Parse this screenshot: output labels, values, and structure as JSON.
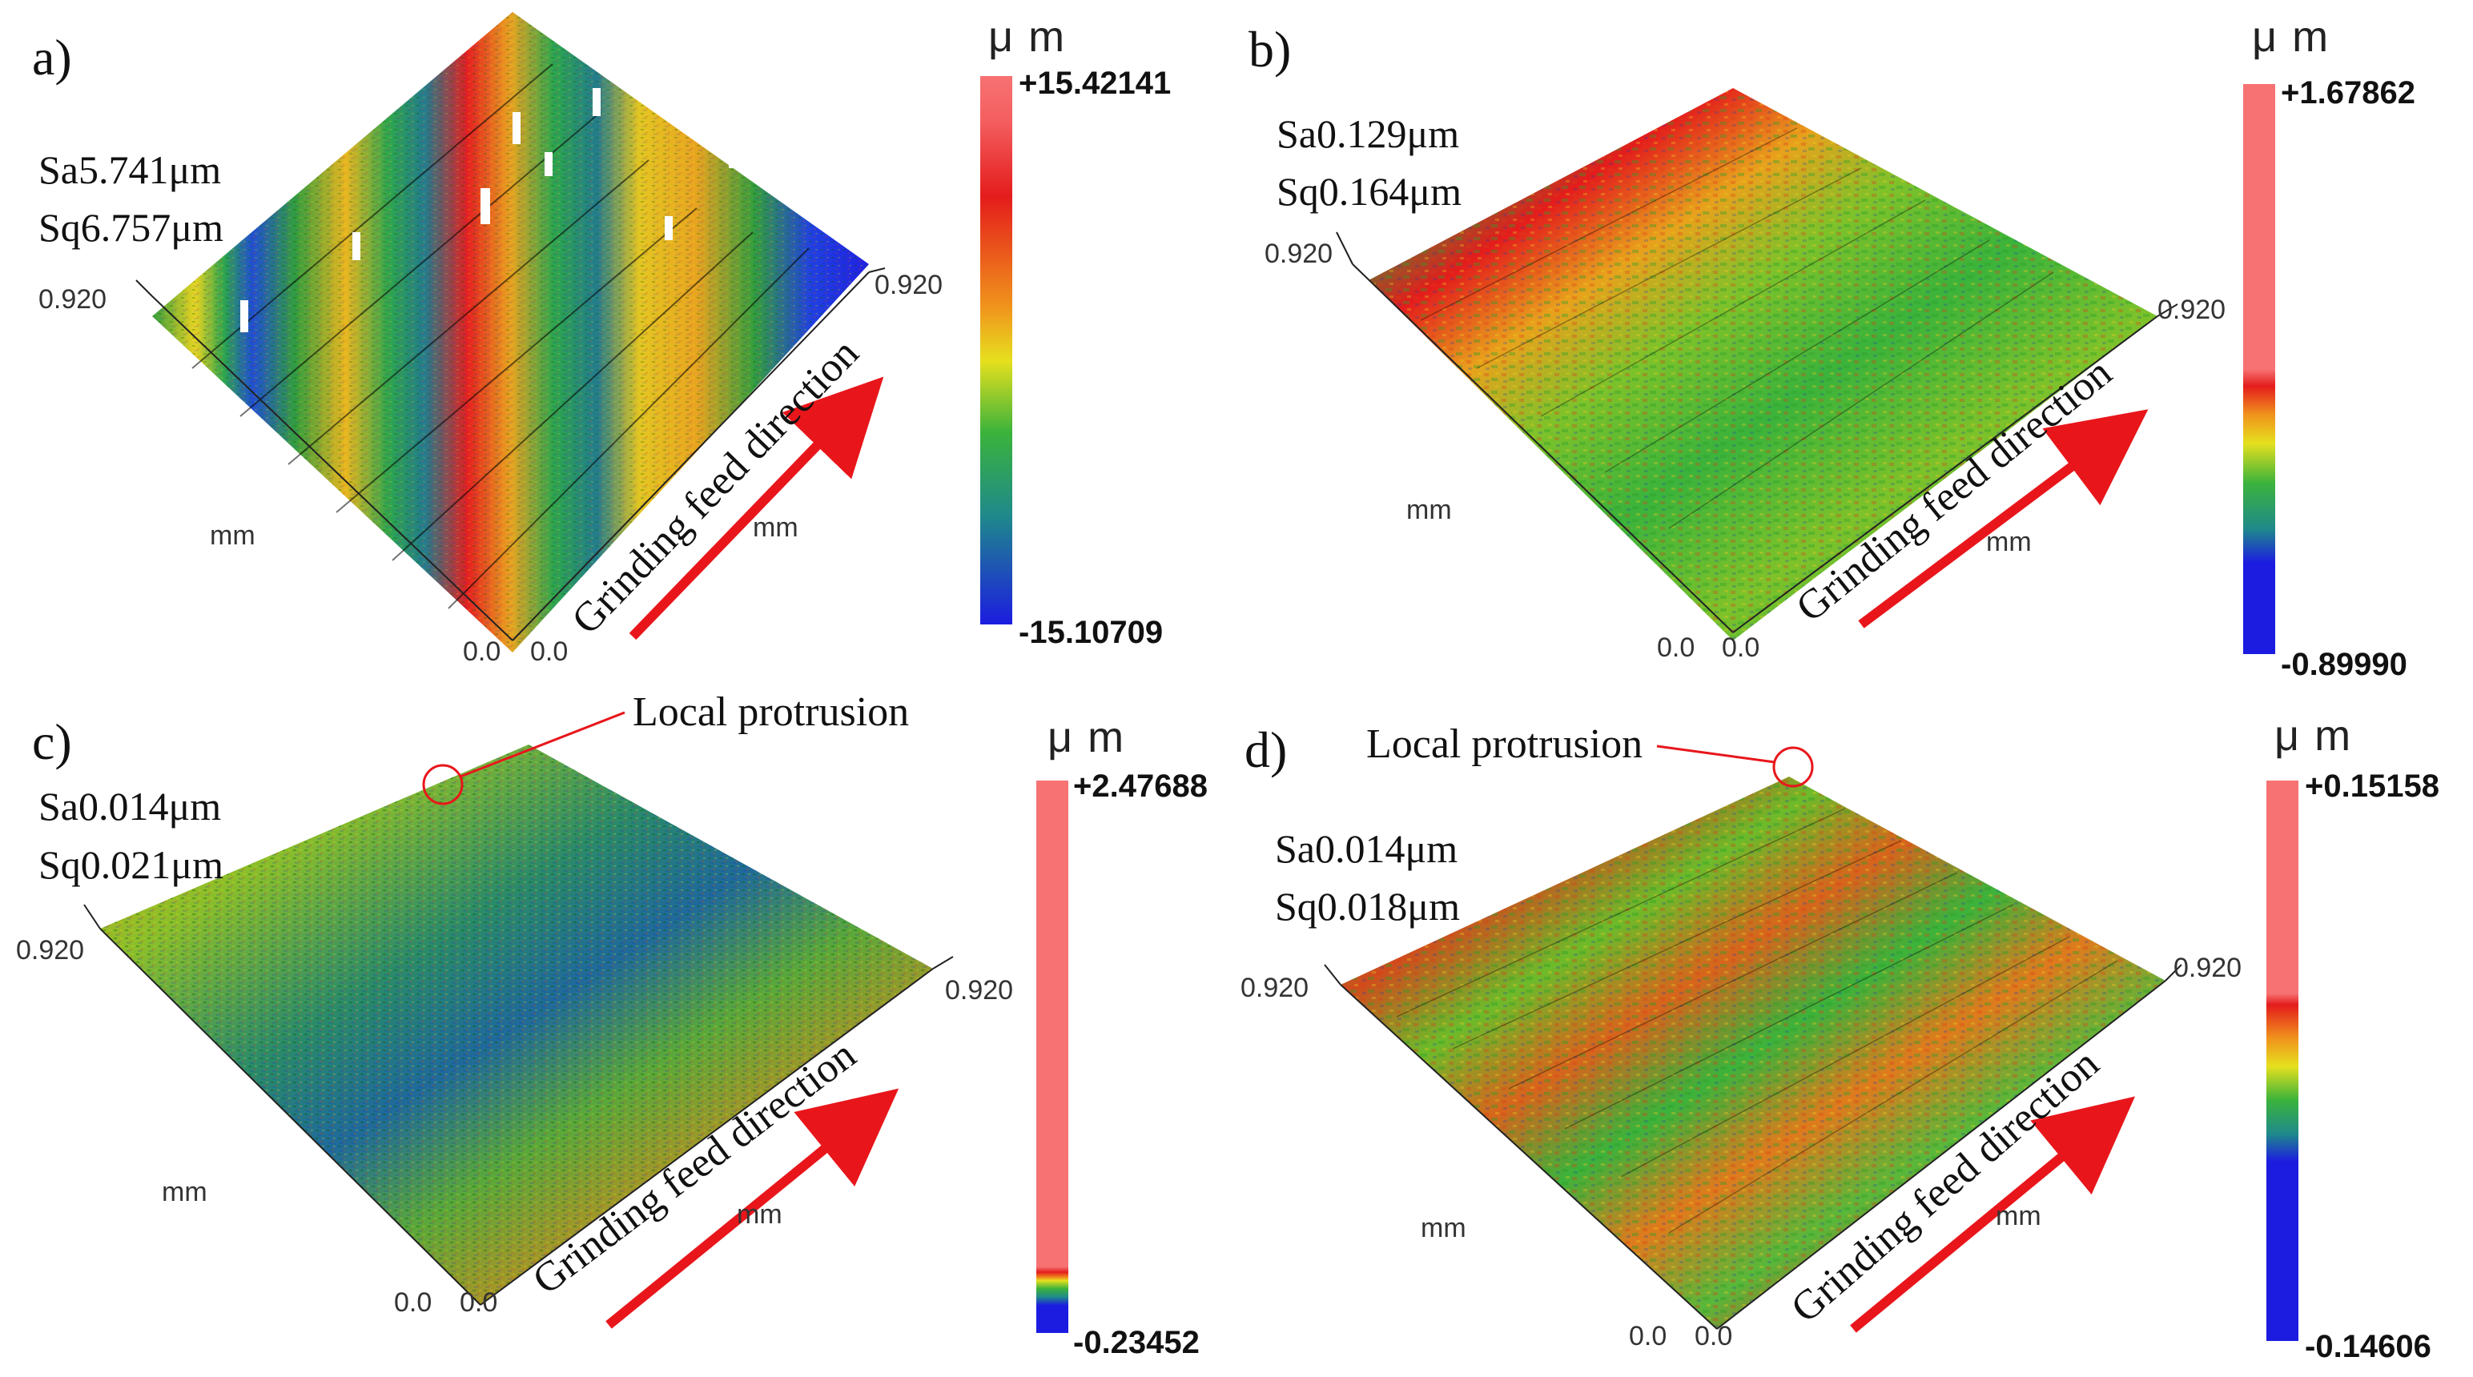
{
  "figure": {
    "feed_direction_text": "Grinding feed direction",
    "panels": [
      {
        "id": "a",
        "label": "a)",
        "sa": "Sa5.741μm",
        "sq": "Sq6.757μm",
        "axis_max_left": "0.920",
        "axis_max_right": "0.920",
        "axis_zero_left": "0.0",
        "axis_zero_right": "0.0",
        "unit_left": "mm",
        "unit_right": "mm",
        "colorbar": {
          "unit": "μ m",
          "max": "+15.42141",
          "min": "-15.10709",
          "palette": "full"
        },
        "annotation": ""
      },
      {
        "id": "b",
        "label": "b)",
        "sa": "Sa0.129μm",
        "sq": "Sq0.164μm",
        "axis_max_left": "0.920",
        "axis_max_right": "0.920",
        "axis_zero_left": "0.0",
        "axis_zero_right": "0.0",
        "unit_left": "mm",
        "unit_right": "mm",
        "colorbar": {
          "unit": "μ m",
          "max": "+1.67862",
          "min": "-0.89990",
          "palette": "mid"
        },
        "annotation": ""
      },
      {
        "id": "c",
        "label": "c)",
        "sa": "Sa0.014μm",
        "sq": "Sq0.021μm",
        "axis_max_left": "0.920",
        "axis_max_right": "0.920",
        "axis_zero_left": "0.0",
        "axis_zero_right": "0.0",
        "unit_left": "mm",
        "unit_right": "mm",
        "colorbar": {
          "unit": "μ m",
          "max": "+2.47688",
          "min": "-0.23452",
          "palette": "low"
        },
        "annotation": "Local protrusion"
      },
      {
        "id": "d",
        "label": "d)",
        "sa": "Sa0.014μm",
        "sq": "Sq0.018μm",
        "axis_max_left": "0.920",
        "axis_max_right": "0.920",
        "axis_zero_left": "0.0",
        "axis_zero_right": "0.0",
        "unit_left": "mm",
        "unit_right": "mm",
        "colorbar": {
          "unit": "μ m",
          "max": "+0.15158",
          "min": "-0.14606",
          "palette": "mid"
        },
        "annotation": "Local protrusion"
      }
    ],
    "colors": {
      "arrow": "#e8161b",
      "pink": "#f77273",
      "red": "#e41c1c",
      "orange": "#f0931c",
      "yellow": "#e6e01e",
      "green": "#3bb33b",
      "teal": "#1f8a8a",
      "blue": "#1c1ce0"
    }
  }
}
